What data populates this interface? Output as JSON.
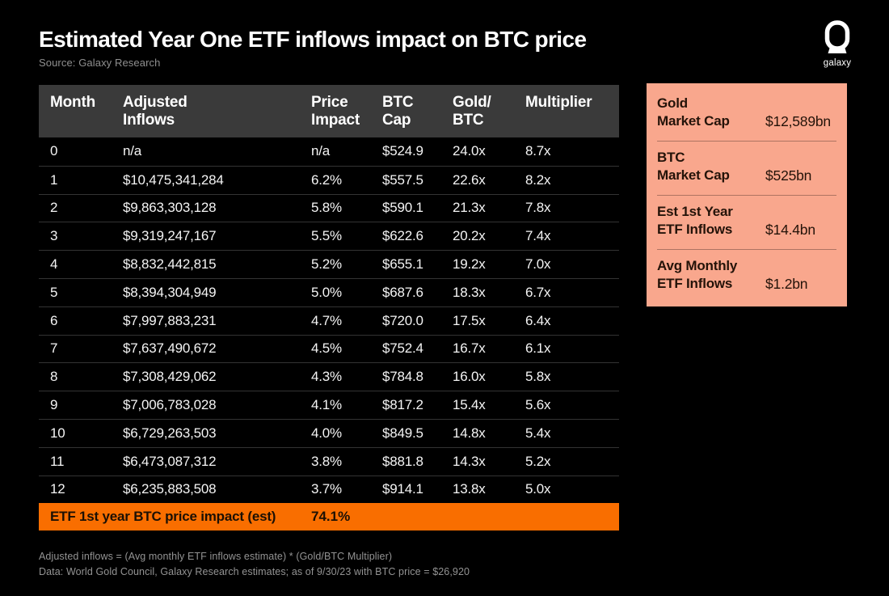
{
  "header": {
    "title": "Estimated Year One ETF inflows impact on BTC price",
    "source": "Source: Galaxy Research",
    "logo_text": "galaxy"
  },
  "colors": {
    "background": "#000000",
    "table_header_bg": "#3A3A3A",
    "row_divider": "#333333",
    "accent_orange": "#F96E00",
    "panel_salmon": "#F9A78D",
    "text_white": "#FFFFFF",
    "muted_gray": "#8F8F8F"
  },
  "chart_data": {
    "type": "table",
    "title": "Estimated Year One ETF inflows impact on BTC price",
    "source": "Source: Galaxy Research",
    "columns": [
      {
        "key": "month",
        "label": "Month"
      },
      {
        "key": "adjusted-inflows",
        "label": "Adjusted\nInflows"
      },
      {
        "key": "price-impact",
        "label": "Price\nImpact"
      },
      {
        "key": "btc-cap",
        "label": "BTC\nCap"
      },
      {
        "key": "gold-btc",
        "label": "Gold/\nBTC"
      },
      {
        "key": "multiplier",
        "label": "Multiplier"
      }
    ],
    "rows": [
      [
        "0",
        "n/a",
        "n/a",
        "$524.9",
        "24.0x",
        "8.7x"
      ],
      [
        "1",
        "$10,475,341,284",
        "6.2%",
        "$557.5",
        "22.6x",
        "8.2x"
      ],
      [
        "2",
        "$9,863,303,128",
        "5.8%",
        "$590.1",
        "21.3x",
        "7.8x"
      ],
      [
        "3",
        "$9,319,247,167",
        "5.5%",
        "$622.6",
        "20.2x",
        "7.4x"
      ],
      [
        "4",
        "$8,832,442,815",
        "5.2%",
        "$655.1",
        "19.2x",
        "7.0x"
      ],
      [
        "5",
        "$8,394,304,949",
        "5.0%",
        "$687.6",
        "18.3x",
        "6.7x"
      ],
      [
        "6",
        "$7,997,883,231",
        "4.7%",
        "$720.0",
        "17.5x",
        "6.4x"
      ],
      [
        "7",
        "$7,637,490,672",
        "4.5%",
        "$752.4",
        "16.7x",
        "6.1x"
      ],
      [
        "8",
        "$7,308,429,062",
        "4.3%",
        "$784.8",
        "16.0x",
        "5.8x"
      ],
      [
        "9",
        "$7,006,783,028",
        "4.1%",
        "$817.2",
        "15.4x",
        "5.6x"
      ],
      [
        "10",
        "$6,729,263,503",
        "4.0%",
        "$849.5",
        "14.8x",
        "5.4x"
      ],
      [
        "11",
        "$6,473,087,312",
        "3.8%",
        "$881.8",
        "14.3x",
        "5.2x"
      ],
      [
        "12",
        "$6,235,883,508",
        "3.7%",
        "$914.1",
        "13.8x",
        "5.0x"
      ]
    ],
    "summary": {
      "label": "ETF 1st year BTC price impact (est)",
      "value": "74.1%"
    }
  },
  "stats_panel": {
    "items": [
      {
        "label": "Gold\nMarket Cap",
        "value": "$12,589bn"
      },
      {
        "label": "BTC\nMarket Cap",
        "value": "$525bn"
      },
      {
        "label": "Est 1st Year\nETF Inflows",
        "value": "$14.4bn"
      },
      {
        "label": "Avg Monthly\nETF Inflows",
        "value": "$1.2bn"
      }
    ]
  },
  "footnotes": [
    "Adjusted inflows = (Avg monthly ETF inflows estimate) * (Gold/BTC Multiplier)",
    "Data: World Gold Council, Galaxy Research estimates; as of 9/30/23 with BTC price = $26,920"
  ]
}
